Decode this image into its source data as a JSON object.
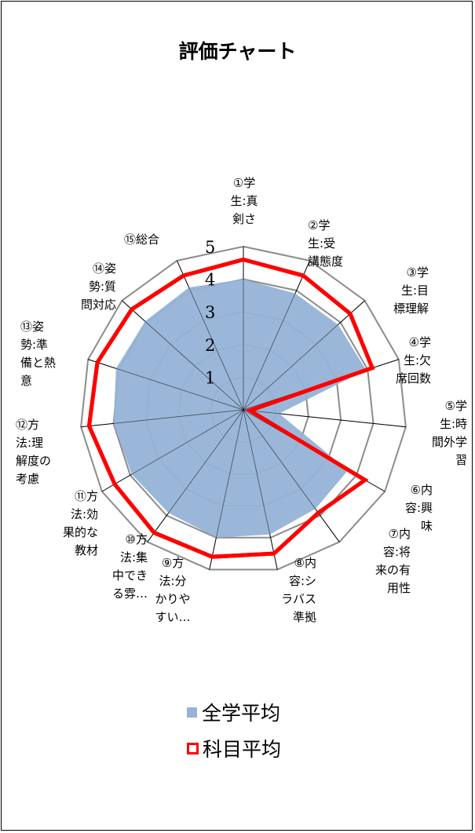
{
  "chart_data": {
    "type": "radar",
    "title": "評価チャート",
    "axes": [
      "①学\n生:真\n剣さ",
      "②学\n生:受\n講態度",
      "③学\n生:目\n標理解",
      "④学\n生:欠\n席回数",
      "⑤学\n生:時\n間外学\n習",
      "⑥内\n容:興\n味",
      "⑦内\n容:将\n来の有\n用性",
      "⑧内\n容:シ\nラバス\n準拠",
      "⑨方\n法:分\nかりや\nすい…",
      "⑩方\n法:集\n中でき\nる雰…",
      "⑪方\n法:効\n果的な\n教材",
      "⑫方\n法:理\n解度の\n考慮",
      "⑬姿\n勢:準\n備と熱\n意",
      "⑭姿\n勢:質\n問対応",
      "⑮総合"
    ],
    "rlim": [
      0,
      5
    ],
    "ticks": [
      "1",
      "2",
      "3",
      "4",
      "5"
    ],
    "series": [
      {
        "name": "全学平均",
        "style": "filled",
        "color": "#95b3d7",
        "values": [
          4.0,
          3.9,
          3.9,
          3.95,
          1.1,
          3.7,
          3.75,
          3.9,
          4.0,
          3.9,
          3.95,
          4.0,
          4.1,
          4.05,
          4.1
        ]
      },
      {
        "name": "科目平均",
        "style": "line",
        "color": "#ff0000",
        "values": [
          4.6,
          4.5,
          4.4,
          4.15,
          0.2,
          4.3,
          3.9,
          4.5,
          4.6,
          4.65,
          4.55,
          4.75,
          4.7,
          4.6,
          4.5
        ]
      }
    ],
    "grid": true,
    "legend_position": "bottom"
  }
}
